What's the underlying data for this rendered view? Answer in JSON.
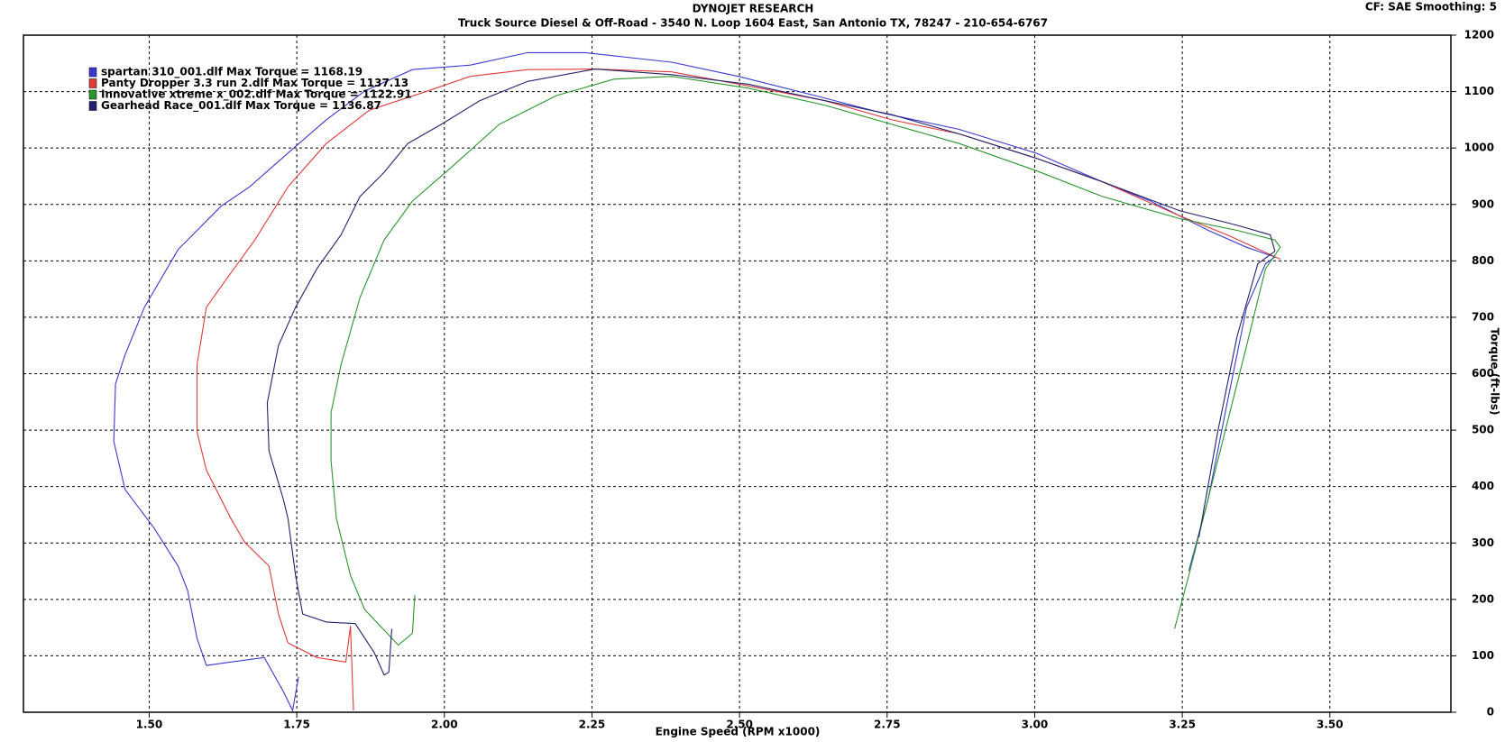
{
  "chart_data": {
    "type": "line",
    "title": "DYNOJET RESEARCH",
    "subtitle": "Truck Source Diesel & Off-Road - 3540 N. Loop 1604 East, San Antonio  TX, 78247 - 210-654-6767",
    "annotation": "CF: SAE  Smoothing: 5",
    "x_label": "Engine Speed (RPM x1000)",
    "y_label": "Torque (ft-lbs)",
    "xlim": [
      1.287,
      3.705
    ],
    "ylim": [
      0,
      1200
    ],
    "xticks": [
      {
        "value": 1.5,
        "label": "1.50"
      },
      {
        "value": 1.75,
        "label": "1.75"
      },
      {
        "value": 2.0,
        "label": "2.00"
      },
      {
        "value": 2.25,
        "label": "2.25"
      },
      {
        "value": 2.5,
        "label": "2.50"
      },
      {
        "value": 2.75,
        "label": "2.75"
      },
      {
        "value": 3.0,
        "label": "3.00"
      },
      {
        "value": 3.25,
        "label": "3.25"
      },
      {
        "value": 3.5,
        "label": "3.50"
      }
    ],
    "yticks": [
      0,
      100,
      200,
      300,
      400,
      500,
      600,
      700,
      800,
      900,
      1000,
      1100,
      1200
    ],
    "grid": true,
    "series": [
      {
        "name": "spartan 310_001.dlf Max Torque = 1168.19",
        "color": "#3a3ad0",
        "x": [
          1.753,
          1.743,
          1.727,
          1.695,
          1.638,
          1.597,
          1.581,
          1.565,
          1.549,
          1.508,
          1.459,
          1.44,
          1.443,
          1.459,
          1.492,
          1.549,
          1.622,
          1.67,
          1.735,
          1.8,
          1.865,
          1.946,
          2.044,
          2.141,
          2.239,
          2.385,
          2.498,
          2.628,
          2.742,
          2.872,
          3.002,
          3.115,
          3.196,
          3.294,
          3.359,
          3.407,
          3.391,
          3.359,
          3.326,
          3.294,
          3.261
        ],
        "values": [
          63,
          3,
          37,
          97,
          89,
          83,
          131,
          216,
          259,
          327,
          395,
          480,
          582,
          633,
          718,
          820,
          897,
          931,
          991,
          1050,
          1101,
          1139,
          1147,
          1169,
          1169,
          1152,
          1127,
          1093,
          1062,
          1033,
          991,
          940,
          906,
          854,
          824,
          807,
          795,
          718,
          548,
          378,
          250
        ]
      },
      {
        "name": "Panty Dropper 3.3 run 2.dlf Max Torque = 1137.13",
        "color": "#e03a3a",
        "x": [
          1.846,
          1.841,
          1.833,
          1.784,
          1.735,
          1.719,
          1.703,
          1.662,
          1.638,
          1.597,
          1.581,
          1.581,
          1.597,
          1.638,
          1.679,
          1.735,
          1.8,
          1.873,
          1.963,
          2.044,
          2.141,
          2.255,
          2.385,
          2.515,
          2.644,
          2.758,
          2.872,
          3.002,
          3.115,
          3.245,
          3.326,
          3.416
        ],
        "values": [
          3,
          153,
          89,
          97,
          123,
          174,
          259,
          301,
          344,
          429,
          497,
          616,
          718,
          778,
          837,
          931,
          1008,
          1067,
          1098,
          1127,
          1139,
          1140,
          1135,
          1110,
          1084,
          1050,
          1025,
          982,
          940,
          880,
          846,
          803
        ]
      },
      {
        "name": "Innovative xtreme x_002.dlf Max Torque = 1122.91",
        "color": "#2a962a",
        "x": [
          1.95,
          1.946,
          1.922,
          1.865,
          1.841,
          1.817,
          1.808,
          1.808,
          1.825,
          1.857,
          1.898,
          1.946,
          2.011,
          2.093,
          2.19,
          2.287,
          2.385,
          2.515,
          2.644,
          2.758,
          2.872,
          3.002,
          3.115,
          3.245,
          3.343,
          3.407,
          3.416,
          3.391,
          3.359,
          3.31,
          3.261,
          3.237
        ],
        "values": [
          208,
          140,
          119,
          182,
          242,
          344,
          446,
          531,
          616,
          735,
          837,
          906,
          965,
          1042,
          1093,
          1122,
          1127,
          1106,
          1076,
          1042,
          1008,
          960,
          914,
          875,
          854,
          837,
          824,
          786,
          650,
          446,
          242,
          148
        ]
      },
      {
        "name": "Gearhead Race_001.dlf Max Torque = 1136.87",
        "color": "#22226e",
        "x": [
          1.911,
          1.906,
          1.898,
          1.881,
          1.849,
          1.8,
          1.76,
          1.748,
          1.735,
          1.727,
          1.703,
          1.7,
          1.719,
          1.748,
          1.784,
          1.825,
          1.857,
          1.898,
          1.938,
          1.995,
          2.06,
          2.141,
          2.255,
          2.385,
          2.515,
          2.644,
          2.758,
          2.872,
          3.002,
          3.115,
          3.245,
          3.343,
          3.399,
          3.407,
          3.378,
          3.343,
          3.31,
          3.278
        ],
        "values": [
          148,
          71,
          66,
          106,
          157,
          160,
          174,
          242,
          344,
          378,
          463,
          548,
          650,
          718,
          786,
          846,
          914,
          957,
          1008,
          1042,
          1084,
          1118,
          1140,
          1130,
          1113,
          1084,
          1059,
          1025,
          982,
          940,
          889,
          863,
          846,
          817,
          795,
          667,
          497,
          310
        ]
      }
    ]
  }
}
